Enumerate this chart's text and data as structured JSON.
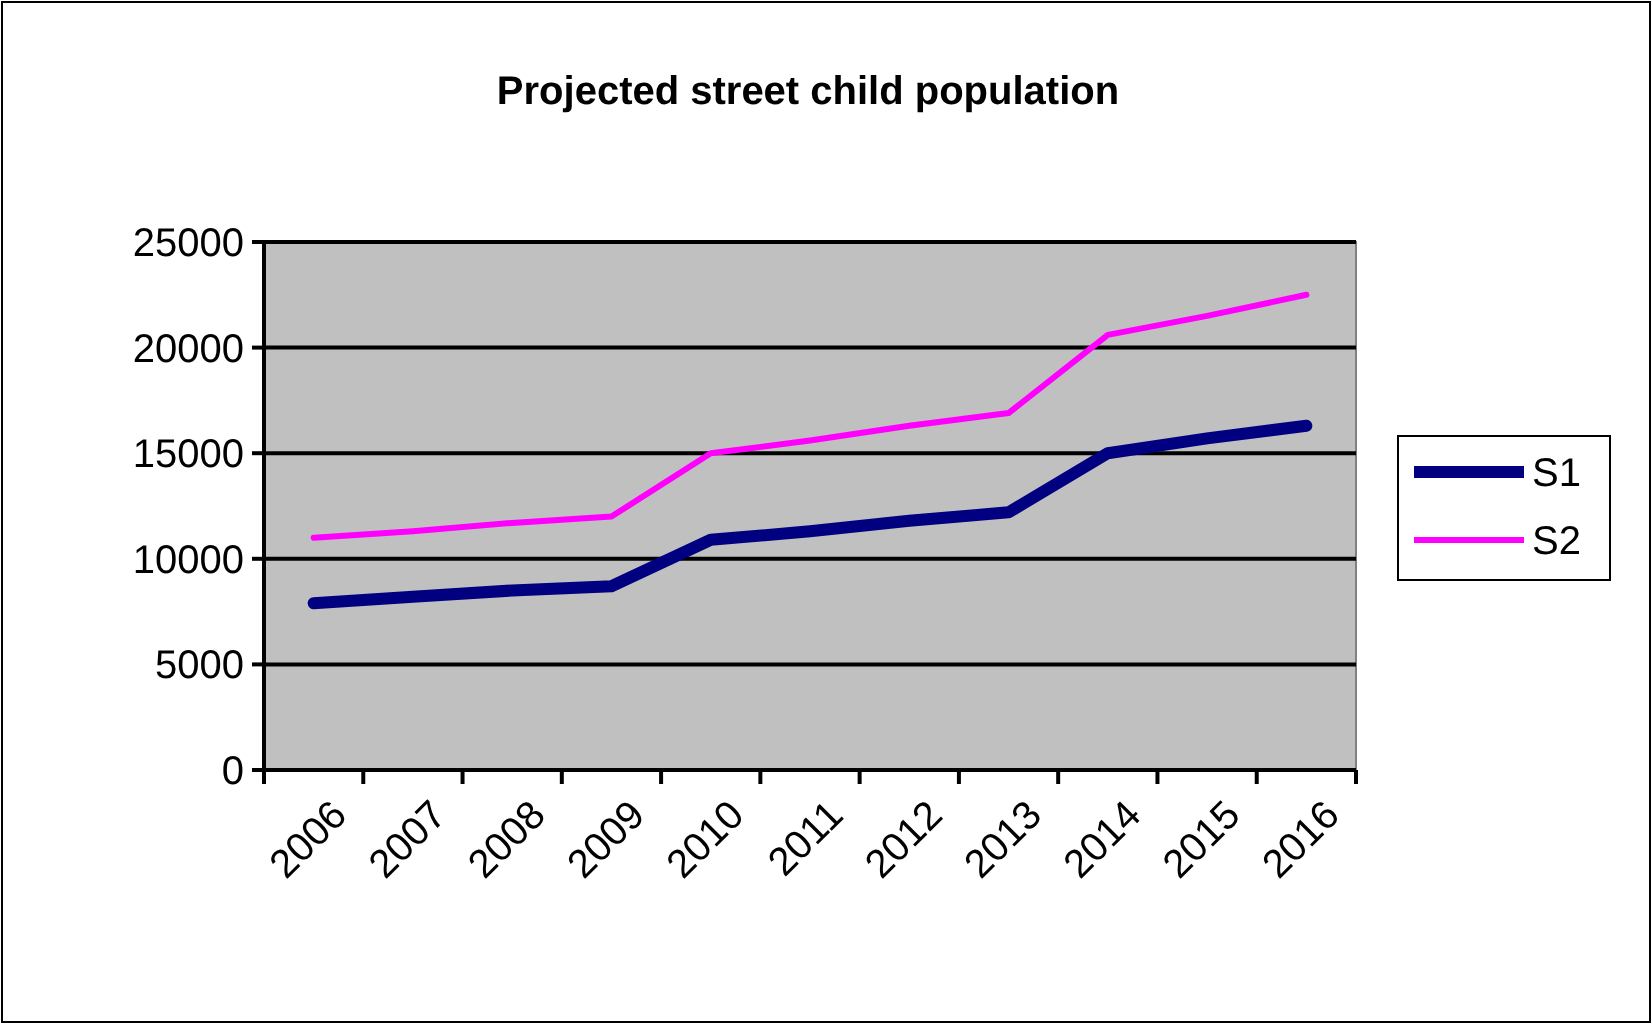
{
  "chart_data": {
    "type": "line",
    "title": "Projected street child population",
    "categories": [
      "2006",
      "2007",
      "2008",
      "2009",
      "2010",
      "2011",
      "2012",
      "2013",
      "2014",
      "2015",
      "2016"
    ],
    "series": [
      {
        "name": "S1",
        "color": "#000080",
        "values": [
          7900,
          8200,
          8500,
          8700,
          10900,
          11300,
          11800,
          12200,
          15000,
          15700,
          16300
        ]
      },
      {
        "name": "S2",
        "color": "#ff00ff",
        "values": [
          11000,
          11300,
          11700,
          12000,
          15000,
          15600,
          16300,
          16900,
          20600,
          21500,
          22500
        ]
      }
    ],
    "ylim": [
      0,
      25000
    ],
    "yticks": [
      0,
      5000,
      10000,
      15000,
      20000,
      25000
    ],
    "grid": "y",
    "legend": "right",
    "marker": "none",
    "line_style": "solid"
  }
}
